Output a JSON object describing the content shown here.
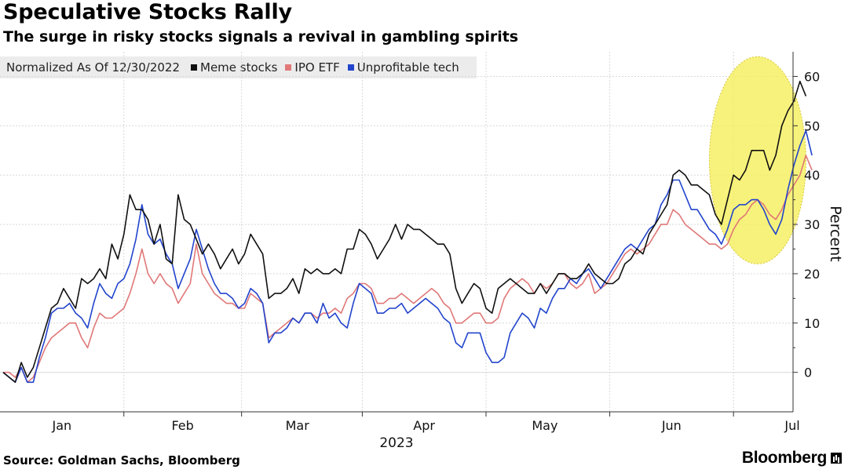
{
  "title": "Speculative Stocks Rally",
  "subtitle": "The surge in risky stocks signals a revival in gambling spirits",
  "legend": {
    "label": "Normalized As Of 12/30/2022",
    "items": [
      {
        "name": "Meme stocks",
        "color": "#111111"
      },
      {
        "name": "IPO ETF",
        "color": "#e07878"
      },
      {
        "name": "Unprofitable tech",
        "color": "#2244cc"
      }
    ]
  },
  "footer": {
    "source": "Source: Goldman Sachs, Bloomberg",
    "brand": "Bloomberg"
  },
  "chart_data": {
    "type": "line",
    "ylabel": "Percent",
    "xlabel": "2023",
    "ylim": [
      -8,
      65
    ],
    "yticks": [
      0,
      10,
      20,
      30,
      40,
      50,
      60
    ],
    "y_axis_position": "right",
    "grid": true,
    "legend_position": "top-left",
    "x_unit": "trading day index (0 = 12/30/2022)",
    "xlim": [
      0,
      128
    ],
    "month_ticks": [
      {
        "label": "Jan",
        "x": 10
      },
      {
        "label": "Feb",
        "x": 30
      },
      {
        "label": "Mar",
        "x": 49
      },
      {
        "label": "Apr",
        "x": 70
      },
      {
        "label": "May",
        "x": 90
      },
      {
        "label": "Jun",
        "x": 111
      },
      {
        "label": "Jul",
        "x": 131
      }
    ],
    "highlight": {
      "shape": "ellipse",
      "color": "#f5ef5a",
      "x_range": [
        117,
        133
      ],
      "y_range": [
        22,
        64
      ]
    },
    "series": [
      {
        "name": "Meme stocks",
        "color": "#111111",
        "values": [
          0,
          -1,
          -2,
          2,
          -1,
          1,
          5,
          9,
          13,
          14,
          17,
          15,
          13,
          19,
          18,
          19,
          21,
          19,
          26,
          23,
          28,
          36,
          33,
          33,
          31,
          26,
          30,
          23,
          22,
          36,
          31,
          30,
          27,
          24,
          26,
          24,
          21,
          23,
          25,
          22,
          24,
          28,
          26,
          24,
          15,
          16,
          16,
          17,
          19,
          16,
          21,
          20,
          21,
          20,
          20,
          21,
          20,
          25,
          25,
          29,
          28,
          26,
          23,
          25,
          27,
          30,
          27,
          30,
          29,
          29,
          28,
          27,
          26,
          26,
          24,
          17,
          14,
          16,
          18,
          17,
          13,
          12,
          17,
          18,
          19,
          18,
          17,
          16,
          16,
          18,
          16,
          18,
          20,
          20,
          19,
          19,
          20,
          22,
          20,
          19,
          18,
          18,
          19,
          22,
          23,
          25,
          24,
          28,
          30,
          32,
          34,
          40,
          41,
          40,
          38,
          38,
          37,
          36,
          32,
          30,
          35,
          40,
          39,
          41,
          45,
          45,
          45,
          41,
          44,
          50,
          53,
          55,
          59,
          56
        ]
      },
      {
        "name": "IPO ETF",
        "color": "#e07878",
        "values": [
          0,
          0,
          -1,
          1,
          -2,
          -1,
          2,
          5,
          7,
          8,
          9,
          10,
          10,
          7,
          5,
          9,
          12,
          11,
          11,
          12,
          13,
          16,
          20,
          25,
          20,
          18,
          20,
          18,
          17,
          14,
          16,
          18,
          26,
          20,
          18,
          16,
          15,
          14,
          14,
          13,
          13,
          16,
          15,
          14,
          7,
          8,
          9,
          10,
          11,
          10,
          12,
          12,
          11,
          12,
          12,
          13,
          12,
          15,
          16,
          18,
          18,
          17,
          14,
          14,
          15,
          15,
          16,
          15,
          14,
          15,
          16,
          17,
          16,
          14,
          13,
          10,
          10,
          11,
          12,
          12,
          10,
          10,
          11,
          15,
          17,
          18,
          19,
          18,
          16,
          18,
          17,
          18,
          20,
          20,
          18,
          17,
          18,
          20,
          16,
          17,
          18,
          20,
          22,
          24,
          25,
          24,
          25,
          26,
          28,
          30,
          30,
          33,
          32,
          30,
          29,
          28,
          27,
          26,
          26,
          25,
          26,
          29,
          31,
          32,
          34,
          35,
          34,
          32,
          31,
          33,
          36,
          38,
          40,
          44,
          41
        ]
      },
      {
        "name": "Unprofitable tech",
        "color": "#2244cc",
        "values": [
          0,
          -1,
          -2,
          1,
          -2,
          -2,
          3,
          7,
          12,
          13,
          13,
          14,
          12,
          11,
          9,
          14,
          18,
          16,
          15,
          18,
          19,
          22,
          27,
          34,
          28,
          26,
          27,
          24,
          22,
          17,
          20,
          23,
          29,
          25,
          21,
          18,
          16,
          16,
          15,
          13,
          14,
          17,
          16,
          14,
          6,
          8,
          8,
          9,
          11,
          10,
          12,
          12,
          10,
          14,
          11,
          12,
          10,
          9,
          14,
          18,
          17,
          16,
          12,
          12,
          13,
          13,
          14,
          12,
          13,
          14,
          15,
          14,
          13,
          11,
          10,
          6,
          5,
          8,
          8,
          8,
          4,
          2,
          2,
          3,
          8,
          10,
          12,
          11,
          9,
          13,
          12,
          15,
          17,
          17,
          19,
          18,
          20,
          21,
          19,
          17,
          19,
          21,
          23,
          25,
          26,
          25,
          27,
          29,
          30,
          34,
          36,
          39,
          39,
          36,
          33,
          33,
          31,
          29,
          28,
          26,
          29,
          33,
          34,
          34,
          35,
          35,
          33,
          30,
          28,
          31,
          37,
          42,
          46,
          49,
          44
        ]
      }
    ]
  }
}
